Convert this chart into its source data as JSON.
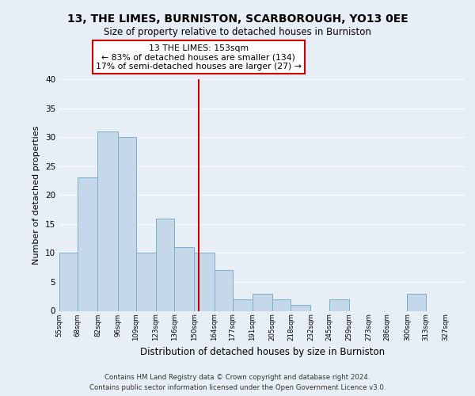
{
  "title1": "13, THE LIMES, BURNISTON, SCARBOROUGH, YO13 0EE",
  "title2": "Size of property relative to detached houses in Burniston",
  "xlabel": "Distribution of detached houses by size in Burniston",
  "ylabel": "Number of detached properties",
  "bar_left_edges": [
    55,
    68,
    82,
    96,
    109,
    123,
    136,
    150,
    164,
    177,
    191,
    205,
    218,
    232,
    245,
    259,
    273,
    286,
    300,
    313
  ],
  "bar_widths": [
    13,
    14,
    14,
    13,
    14,
    13,
    14,
    14,
    13,
    14,
    14,
    13,
    14,
    13,
    14,
    14,
    13,
    14,
    13,
    14
  ],
  "bar_heights": [
    10,
    23,
    31,
    30,
    10,
    16,
    11,
    10,
    7,
    2,
    3,
    2,
    1,
    0,
    2,
    0,
    0,
    0,
    3,
    0
  ],
  "tick_labels": [
    "55sqm",
    "68sqm",
    "82sqm",
    "96sqm",
    "109sqm",
    "123sqm",
    "136sqm",
    "150sqm",
    "164sqm",
    "177sqm",
    "191sqm",
    "205sqm",
    "218sqm",
    "232sqm",
    "245sqm",
    "259sqm",
    "273sqm",
    "286sqm",
    "300sqm",
    "313sqm",
    "327sqm"
  ],
  "tick_positions": [
    55,
    68,
    82,
    96,
    109,
    123,
    136,
    150,
    164,
    177,
    191,
    205,
    218,
    232,
    245,
    259,
    273,
    286,
    300,
    313,
    327
  ],
  "bar_color": "#c5d8ea",
  "bar_edge_color": "#7aafc8",
  "vline_x": 153,
  "vline_color": "#cc0000",
  "annotation_title": "13 THE LIMES: 153sqm",
  "annotation_line1": "← 83% of detached houses are smaller (134)",
  "annotation_line2": "17% of semi-detached houses are larger (27) →",
  "annotation_box_edge": "#cc0000",
  "annotation_box_face": "#ffffff",
  "ylim": [
    0,
    40
  ],
  "yticks": [
    0,
    5,
    10,
    15,
    20,
    25,
    30,
    35,
    40
  ],
  "xlim_left": 55,
  "xlim_right": 341,
  "bg_color": "#e8eef5",
  "plot_bg_color": "#e8eef5",
  "grid_color": "#ffffff",
  "footer1": "Contains HM Land Registry data © Crown copyright and database right 2024.",
  "footer2": "Contains public sector information licensed under the Open Government Licence v3.0."
}
